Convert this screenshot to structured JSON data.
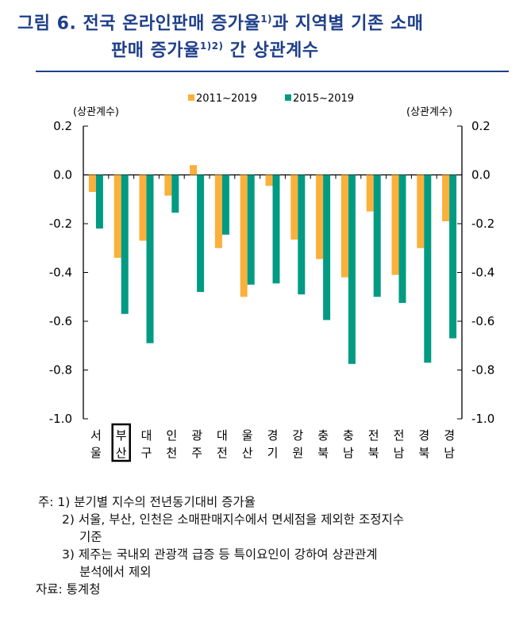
{
  "title": {
    "line1": "그림 6. 전국 온라인판매 증가율",
    "sup1": "1)",
    "line1b": "과 지역별 기존 소매",
    "line2": "판매 증가율",
    "sup2": "1)2)",
    "line2b": " 간 상관계수"
  },
  "chart_data": {
    "type": "bar",
    "categories": [
      "서울",
      "부산",
      "대구",
      "인천",
      "광주",
      "대전",
      "울산",
      "경기",
      "강원",
      "충북",
      "충남",
      "전북",
      "전남",
      "경북",
      "경남"
    ],
    "highlighted_category": "부산",
    "series": [
      {
        "name": "2011~2019",
        "color": "#fbb03b",
        "values": [
          -0.07,
          -0.34,
          -0.27,
          -0.085,
          0.04,
          -0.3,
          -0.5,
          -0.045,
          -0.265,
          -0.345,
          -0.42,
          -0.15,
          -0.41,
          -0.3,
          -0.19
        ]
      },
      {
        "name": "2015~2019",
        "color": "#009b82",
        "values": [
          -0.22,
          -0.57,
          -0.69,
          -0.155,
          -0.48,
          -0.245,
          -0.45,
          -0.445,
          -0.49,
          -0.595,
          -0.775,
          -0.5,
          -0.525,
          -0.77,
          -0.67
        ]
      }
    ],
    "ylim": [
      -1.0,
      0.2
    ],
    "yticks": [
      "0.2",
      "0.0",
      "-0.2",
      "-0.4",
      "-0.6",
      "-0.8",
      "-1.0"
    ],
    "ylabel_left": "(상관계수)",
    "ylabel_right": "(상관계수)",
    "legend": "top-center"
  },
  "notes": {
    "n0": "주: 1) 분기별 지수의 전년동기대비 증가율",
    "n1": "2) 서울, 부산, 인천은 소매판매지수에서 면세점을 제외한 조정지수",
    "n1b": "기준",
    "n2": "3) 제주는 국내외 관광객 급증 등 특이요인이 강하여 상관관계",
    "n2b": "분석에서 제외",
    "source": "자료: 통계청"
  }
}
